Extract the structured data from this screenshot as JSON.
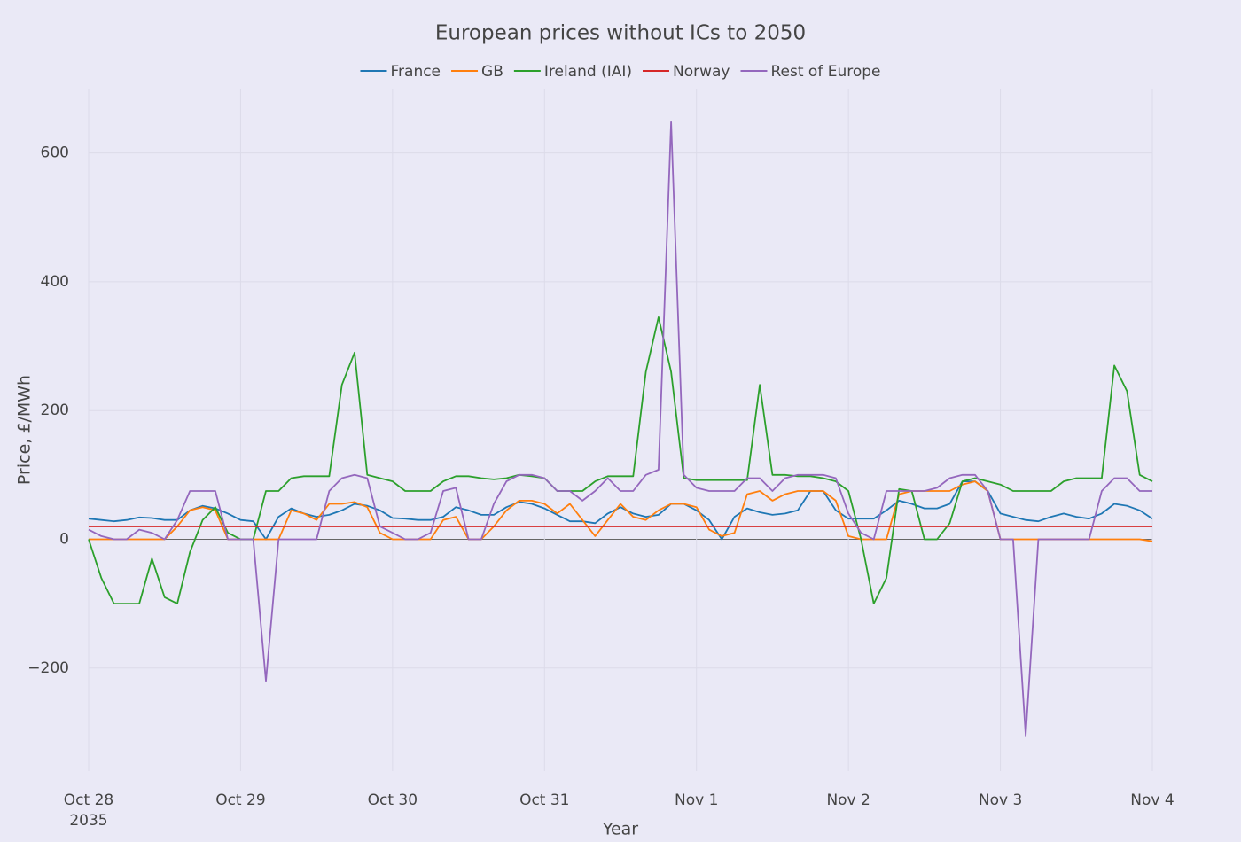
{
  "chart_data": {
    "type": "line",
    "title": "European prices without ICs to 2050",
    "x_label": "Year",
    "y_label": "Price, £/MWh",
    "x": [
      "2035-10-28T00:00",
      "2035-10-28T02:00",
      "2035-10-28T04:00",
      "2035-10-28T06:00",
      "2035-10-28T08:00",
      "2035-10-28T10:00",
      "2035-10-28T12:00",
      "2035-10-28T14:00",
      "2035-10-28T16:00",
      "2035-10-28T18:00",
      "2035-10-28T20:00",
      "2035-10-28T22:00",
      "2035-10-29T00:00",
      "2035-10-29T02:00",
      "2035-10-29T04:00",
      "2035-10-29T06:00",
      "2035-10-29T08:00",
      "2035-10-29T10:00",
      "2035-10-29T12:00",
      "2035-10-29T14:00",
      "2035-10-29T16:00",
      "2035-10-29T18:00",
      "2035-10-29T20:00",
      "2035-10-29T22:00",
      "2035-10-30T00:00",
      "2035-10-30T02:00",
      "2035-10-30T04:00",
      "2035-10-30T06:00",
      "2035-10-30T08:00",
      "2035-10-30T10:00",
      "2035-10-30T12:00",
      "2035-10-30T14:00",
      "2035-10-30T16:00",
      "2035-10-30T18:00",
      "2035-10-30T20:00",
      "2035-10-30T22:00",
      "2035-10-31T00:00",
      "2035-10-31T02:00",
      "2035-10-31T04:00",
      "2035-10-31T06:00",
      "2035-10-31T08:00",
      "2035-10-31T10:00",
      "2035-10-31T12:00",
      "2035-10-31T14:00",
      "2035-10-31T16:00",
      "2035-10-31T18:00",
      "2035-10-31T20:00",
      "2035-10-31T22:00",
      "2035-11-01T00:00",
      "2035-11-01T02:00",
      "2035-11-01T04:00",
      "2035-11-01T06:00",
      "2035-11-01T08:00",
      "2035-11-01T10:00",
      "2035-11-01T12:00",
      "2035-11-01T14:00",
      "2035-11-01T16:00",
      "2035-11-01T18:00",
      "2035-11-01T20:00",
      "2035-11-01T22:00",
      "2035-11-02T00:00",
      "2035-11-02T02:00",
      "2035-11-02T04:00",
      "2035-11-02T06:00",
      "2035-11-02T08:00",
      "2035-11-02T10:00",
      "2035-11-02T12:00",
      "2035-11-02T14:00",
      "2035-11-02T16:00",
      "2035-11-02T18:00",
      "2035-11-02T20:00",
      "2035-11-02T22:00",
      "2035-11-03T00:00",
      "2035-11-03T02:00",
      "2035-11-03T04:00",
      "2035-11-03T06:00",
      "2035-11-03T08:00",
      "2035-11-03T10:00",
      "2035-11-03T12:00",
      "2035-11-03T14:00",
      "2035-11-03T16:00",
      "2035-11-03T18:00",
      "2035-11-03T20:00",
      "2035-11-03T22:00",
      "2035-11-04T00:00"
    ],
    "series": [
      {
        "name": "France",
        "color": "#1f77b4",
        "values": [
          32,
          30,
          28,
          30,
          34,
          33,
          30,
          30,
          45,
          52,
          48,
          40,
          30,
          28,
          0,
          35,
          48,
          40,
          35,
          38,
          45,
          55,
          52,
          45,
          33,
          32,
          30,
          30,
          35,
          50,
          45,
          38,
          38,
          50,
          58,
          55,
          48,
          38,
          28,
          28,
          25,
          40,
          50,
          40,
          35,
          38,
          55,
          55,
          45,
          30,
          0,
          35,
          48,
          42,
          38,
          40,
          45,
          75,
          75,
          45,
          32,
          32,
          32,
          45,
          60,
          55,
          48,
          48,
          55,
          90,
          90,
          75,
          40,
          35,
          30,
          28,
          35,
          40,
          35,
          32,
          40,
          55,
          52,
          45,
          32
        ]
      },
      {
        "name": "GB",
        "color": "#ff7f0e",
        "values": [
          0,
          0,
          0,
          0,
          0,
          0,
          0,
          20,
          45,
          50,
          45,
          0,
          0,
          0,
          0,
          0,
          45,
          40,
          30,
          55,
          55,
          58,
          50,
          10,
          0,
          0,
          0,
          0,
          30,
          35,
          0,
          0,
          20,
          45,
          60,
          60,
          55,
          40,
          55,
          30,
          5,
          30,
          55,
          35,
          30,
          45,
          55,
          55,
          50,
          15,
          5,
          10,
          70,
          75,
          60,
          70,
          75,
          75,
          75,
          60,
          5,
          0,
          0,
          0,
          70,
          75,
          75,
          75,
          75,
          85,
          90,
          75,
          0,
          0,
          0,
          0,
          0,
          0,
          0,
          0,
          0,
          0,
          0,
          0,
          -3
        ]
      },
      {
        "name": "Ireland (IAI)",
        "color": "#2ca02c",
        "values": [
          0,
          -60,
          -100,
          -100,
          -100,
          -30,
          -90,
          -100,
          -20,
          30,
          50,
          10,
          0,
          0,
          75,
          75,
          95,
          98,
          98,
          98,
          240,
          290,
          100,
          95,
          90,
          75,
          75,
          75,
          90,
          98,
          98,
          95,
          93,
          95,
          100,
          98,
          95,
          75,
          75,
          75,
          90,
          98,
          98,
          98,
          260,
          345,
          260,
          95,
          92,
          92,
          92,
          92,
          92,
          240,
          100,
          100,
          98,
          98,
          95,
          90,
          75,
          0,
          -100,
          -60,
          78,
          75,
          0,
          0,
          25,
          90,
          95,
          90,
          85,
          75,
          75,
          75,
          75,
          90,
          95,
          95,
          95,
          270,
          230,
          100,
          90
        ]
      },
      {
        "name": "Norway",
        "color": "#d62728",
        "values": [
          20,
          20,
          20,
          20,
          20,
          20,
          20,
          20,
          20,
          20,
          20,
          20,
          20,
          20,
          20,
          20,
          20,
          20,
          20,
          20,
          20,
          20,
          20,
          20,
          20,
          20,
          20,
          20,
          20,
          20,
          20,
          20,
          20,
          20,
          20,
          20,
          20,
          20,
          20,
          20,
          20,
          20,
          20,
          20,
          20,
          20,
          20,
          20,
          20,
          20,
          20,
          20,
          20,
          20,
          20,
          20,
          20,
          20,
          20,
          20,
          20,
          20,
          20,
          20,
          20,
          20,
          20,
          20,
          20,
          20,
          20,
          20,
          20,
          20,
          20,
          20,
          20,
          20,
          20,
          20,
          20,
          20,
          20,
          20,
          20
        ]
      },
      {
        "name": "Rest of Europe",
        "color": "#9467bd",
        "values": [
          15,
          5,
          0,
          0,
          15,
          10,
          0,
          30,
          75,
          75,
          75,
          0,
          0,
          0,
          -220,
          0,
          0,
          0,
          0,
          75,
          95,
          100,
          95,
          20,
          10,
          0,
          0,
          10,
          75,
          80,
          0,
          0,
          55,
          90,
          100,
          100,
          95,
          75,
          75,
          60,
          75,
          95,
          75,
          75,
          100,
          108,
          648,
          100,
          80,
          75,
          75,
          75,
          95,
          95,
          75,
          95,
          100,
          100,
          100,
          95,
          40,
          10,
          0,
          75,
          75,
          75,
          75,
          80,
          95,
          100,
          100,
          75,
          0,
          0,
          -305,
          0,
          0,
          0,
          0,
          0,
          75,
          95,
          95,
          75,
          75
        ]
      }
    ],
    "xlim": [
      "2035-10-28T00:00",
      "2035-11-04T00:00"
    ],
    "xticks": [
      {
        "value": "2035-10-28T00:00",
        "label": "Oct 28"
      },
      {
        "value": "2035-10-29T00:00",
        "label": "Oct 29"
      },
      {
        "value": "2035-10-30T00:00",
        "label": "Oct 30"
      },
      {
        "value": "2035-10-31T00:00",
        "label": "Oct 31"
      },
      {
        "value": "2035-11-01T00:00",
        "label": "Nov 1"
      },
      {
        "value": "2035-11-02T00:00",
        "label": "Nov 2"
      },
      {
        "value": "2035-11-03T00:00",
        "label": "Nov 3"
      },
      {
        "value": "2035-11-04T00:00",
        "label": "Nov 4"
      }
    ],
    "x_year": "2035",
    "ylim": [
      -360,
      700
    ],
    "yticks": [
      {
        "value": -200,
        "label": "−200"
      },
      0,
      200,
      400,
      600
    ],
    "grid": true
  }
}
